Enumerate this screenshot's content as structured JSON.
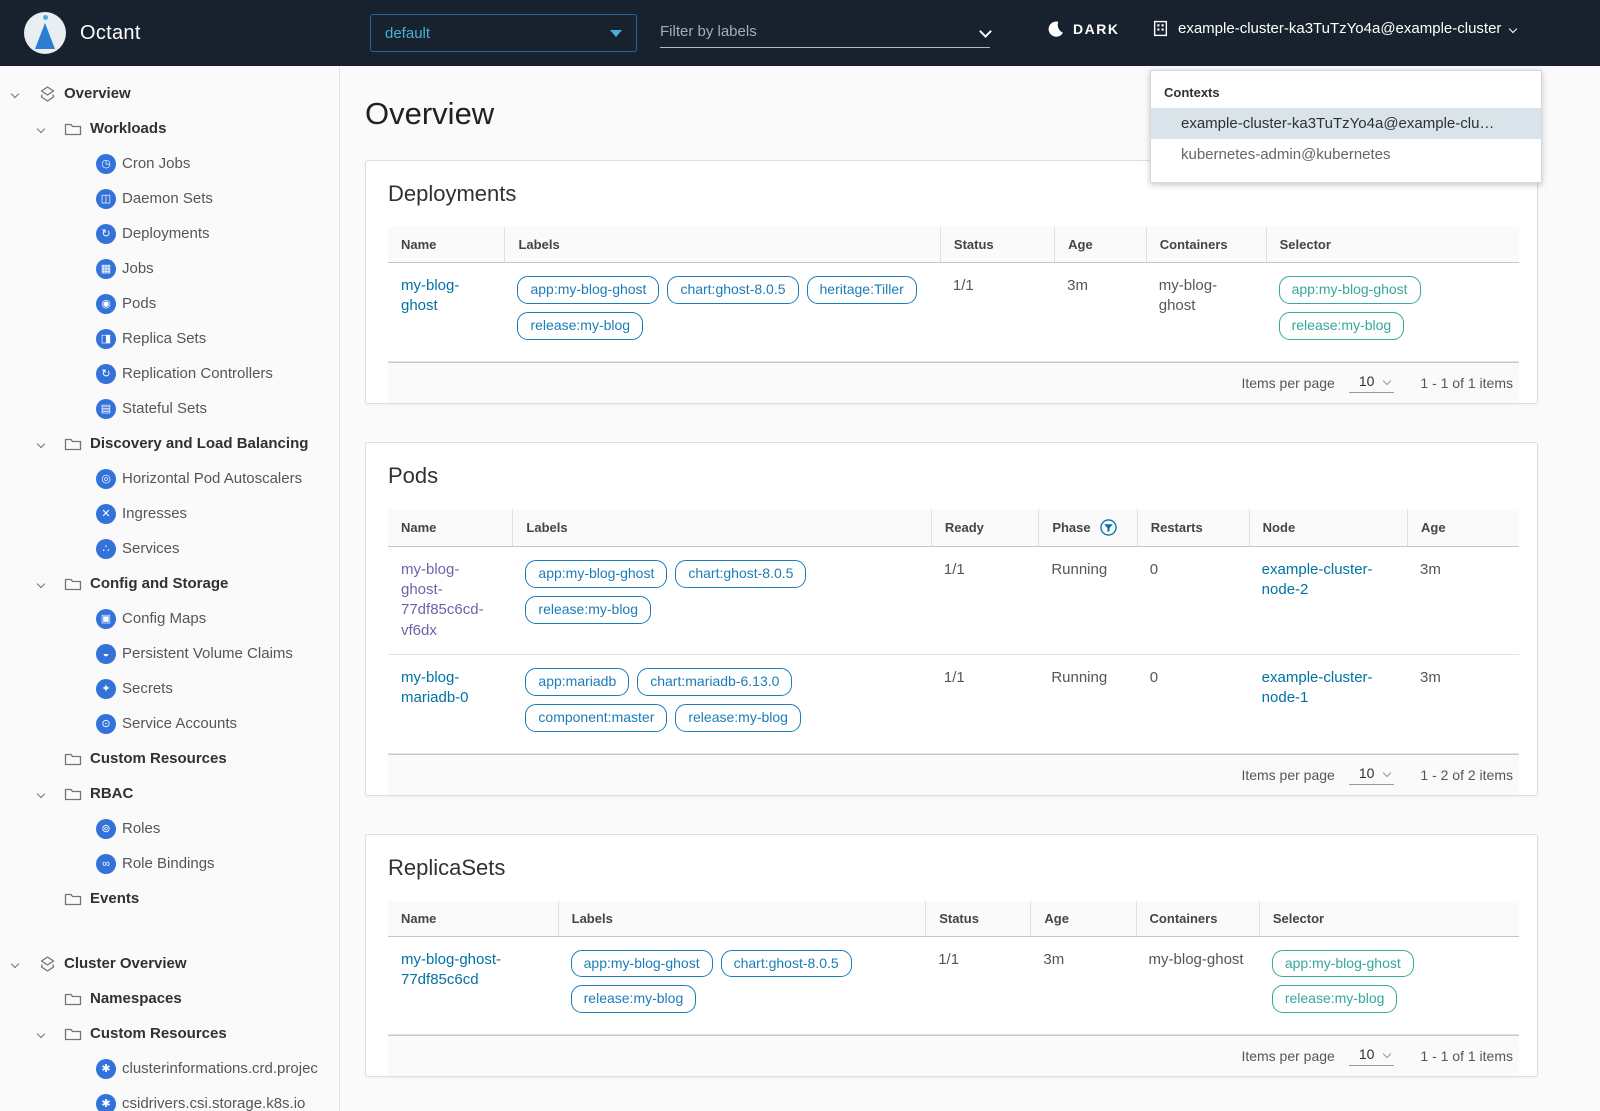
{
  "header": {
    "app_title": "Octant",
    "namespace_select": {
      "value": "default"
    },
    "label_filter": {
      "placeholder": "Filter by labels"
    },
    "theme_toggle_label": "DARK",
    "context_label": "example-cluster-ka3TuTzYo4a@example-cluster"
  },
  "context_menu": {
    "title": "Contexts",
    "items": [
      {
        "label": "example-cluster-ka3TuTzYo4a@example-clu…",
        "selected": true
      },
      {
        "label": "kubernetes-admin@kubernetes",
        "selected": false
      }
    ]
  },
  "sidebar": {
    "icon_glyphs": {
      "cron-jobs": "◷",
      "daemon-sets": "◫",
      "deployments": "↻",
      "jobs": "▦",
      "pods": "◉",
      "replica-sets": "◨",
      "replication-controllers": "↻",
      "stateful-sets": "▤",
      "hpa": "◎",
      "ingresses": "✕",
      "services": "∴",
      "config-maps": "▣",
      "pvc": "◒",
      "secrets": "✦",
      "service-accounts": "⊙",
      "roles": "⊚",
      "role-bindings": "∞",
      "crd": "✱"
    },
    "items": [
      {
        "label": "Overview",
        "depth": 0,
        "icon": "applications",
        "chevron": true,
        "bold": true
      },
      {
        "label": "Workloads",
        "depth": 1,
        "icon": "folder",
        "chevron": true,
        "bold": true
      },
      {
        "label": "Cron Jobs",
        "depth": 2,
        "icon": "cron-jobs"
      },
      {
        "label": "Daemon Sets",
        "depth": 2,
        "icon": "daemon-sets"
      },
      {
        "label": "Deployments",
        "depth": 2,
        "icon": "deployments"
      },
      {
        "label": "Jobs",
        "depth": 2,
        "icon": "jobs"
      },
      {
        "label": "Pods",
        "depth": 2,
        "icon": "pods"
      },
      {
        "label": "Replica Sets",
        "depth": 2,
        "icon": "replica-sets"
      },
      {
        "label": "Replication Controllers",
        "depth": 2,
        "icon": "replication-controllers"
      },
      {
        "label": "Stateful Sets",
        "depth": 2,
        "icon": "stateful-sets"
      },
      {
        "label": "Discovery and Load Balancing",
        "depth": 1,
        "icon": "folder",
        "chevron": true,
        "bold": true
      },
      {
        "label": "Horizontal Pod Autoscalers",
        "depth": 2,
        "icon": "hpa"
      },
      {
        "label": "Ingresses",
        "depth": 2,
        "icon": "ingresses"
      },
      {
        "label": "Services",
        "depth": 2,
        "icon": "services"
      },
      {
        "label": "Config and Storage",
        "depth": 1,
        "icon": "folder",
        "chevron": true,
        "bold": true
      },
      {
        "label": "Config Maps",
        "depth": 2,
        "icon": "config-maps"
      },
      {
        "label": "Persistent Volume Claims",
        "depth": 2,
        "icon": "pvc"
      },
      {
        "label": "Secrets",
        "depth": 2,
        "icon": "secrets"
      },
      {
        "label": "Service Accounts",
        "depth": 2,
        "icon": "service-accounts"
      },
      {
        "label": "Custom Resources",
        "depth": 1,
        "icon": "folder",
        "chevron": false,
        "bold": true
      },
      {
        "label": "RBAC",
        "depth": 1,
        "icon": "folder",
        "chevron": true,
        "bold": true
      },
      {
        "label": "Roles",
        "depth": 2,
        "icon": "roles"
      },
      {
        "label": "Role Bindings",
        "depth": 2,
        "icon": "role-bindings"
      },
      {
        "label": "Events",
        "depth": 1,
        "icon": "folder",
        "chevron": false,
        "bold": true
      },
      {
        "label": "Cluster Overview",
        "depth": 0,
        "icon": "applications",
        "chevron": true,
        "bold": true,
        "gap_before": true
      },
      {
        "label": "Namespaces",
        "depth": 1,
        "icon": "folder",
        "chevron": false,
        "bold": true
      },
      {
        "label": "Custom Resources",
        "depth": 1,
        "icon": "folder",
        "chevron": true,
        "bold": true
      },
      {
        "label": "clusterinformations.crd.projec",
        "depth": 2,
        "icon": "crd"
      },
      {
        "label": "csidrivers.csi.storage.k8s.io",
        "depth": 2,
        "icon": "crd"
      }
    ]
  },
  "main": {
    "title": "Overview",
    "sections": [
      {
        "title": "Deployments",
        "columns": [
          {
            "label": "Name"
          },
          {
            "label": "Labels"
          },
          {
            "label": "Status"
          },
          {
            "label": "Age"
          },
          {
            "label": "Containers"
          },
          {
            "label": "Selector"
          }
        ],
        "col_widths": [
          "10.3%",
          "38.5%",
          "10.1%",
          "8.1%",
          "10.6%",
          "22.4%"
        ],
        "rows": [
          [
            {
              "t": "link",
              "v": "my-blog-ghost"
            },
            {
              "t": "tags",
              "v": [
                "app:my-blog-ghost",
                "chart:ghost-8.0.5",
                "heritage:Tiller",
                "release:my-blog"
              ]
            },
            {
              "t": "text",
              "v": "1/1"
            },
            {
              "t": "text",
              "v": "3m"
            },
            {
              "t": "text",
              "v": "my-blog-ghost"
            },
            {
              "t": "teal-tags",
              "v": [
                "app:my-blog-ghost",
                "release:my-blog"
              ]
            }
          ]
        ],
        "footer": {
          "items_per_page": "Items per page",
          "page_size": "10",
          "range": "1 - 1 of 1 items"
        }
      },
      {
        "title": "Pods",
        "columns": [
          {
            "label": "Name"
          },
          {
            "label": "Labels"
          },
          {
            "label": "Ready"
          },
          {
            "label": "Phase",
            "filter": true
          },
          {
            "label": "Restarts"
          },
          {
            "label": "Node"
          },
          {
            "label": "Age"
          }
        ],
        "col_widths": [
          "11%",
          "37%",
          "9.5%",
          "8.7%",
          "9.9%",
          "14%",
          "9.9%"
        ],
        "rows": [
          [
            {
              "t": "vlink",
              "v": "my-blog-ghost-77df85c6cd-vf6dx"
            },
            {
              "t": "tags",
              "v": [
                "app:my-blog-ghost",
                "chart:ghost-8.0.5",
                "release:my-blog"
              ]
            },
            {
              "t": "text",
              "v": "1/1"
            },
            {
              "t": "text",
              "v": "Running"
            },
            {
              "t": "text",
              "v": "0"
            },
            {
              "t": "link",
              "v": "example-cluster-node-2"
            },
            {
              "t": "text",
              "v": "3m"
            }
          ],
          [
            {
              "t": "link",
              "v": "my-blog-mariadb-0"
            },
            {
              "t": "tags",
              "v": [
                "app:mariadb",
                "chart:mariadb-6.13.0",
                "component:master",
                "release:my-blog"
              ]
            },
            {
              "t": "text",
              "v": "1/1"
            },
            {
              "t": "text",
              "v": "Running"
            },
            {
              "t": "text",
              "v": "0"
            },
            {
              "t": "link",
              "v": "example-cluster-node-1"
            },
            {
              "t": "text",
              "v": "3m"
            }
          ]
        ],
        "footer": {
          "items_per_page": "Items per page",
          "page_size": "10",
          "range": "1 - 2 of 2 items"
        }
      },
      {
        "title": "ReplicaSets",
        "columns": [
          {
            "label": "Name"
          },
          {
            "label": "Labels"
          },
          {
            "label": "Status"
          },
          {
            "label": "Age"
          },
          {
            "label": "Containers"
          },
          {
            "label": "Selector"
          }
        ],
        "col_widths": [
          "15%",
          "32.5%",
          "9.3%",
          "9.3%",
          "10.9%",
          "23%"
        ],
        "rows": [
          [
            {
              "t": "link",
              "v": "my-blog-ghost-77df85c6cd"
            },
            {
              "t": "tags",
              "v": [
                "app:my-blog-ghost",
                "chart:ghost-8.0.5",
                "release:my-blog"
              ]
            },
            {
              "t": "text",
              "v": "1/1"
            },
            {
              "t": "text",
              "v": "3m"
            },
            {
              "t": "text",
              "v": "my-blog-ghost"
            },
            {
              "t": "teal-tags",
              "v": [
                "app:my-blog-ghost",
                "release:my-blog"
              ]
            }
          ]
        ],
        "footer": {
          "items_per_page": "Items per page",
          "page_size": "10",
          "range": "1 - 1 of 1 items"
        }
      }
    ]
  }
}
